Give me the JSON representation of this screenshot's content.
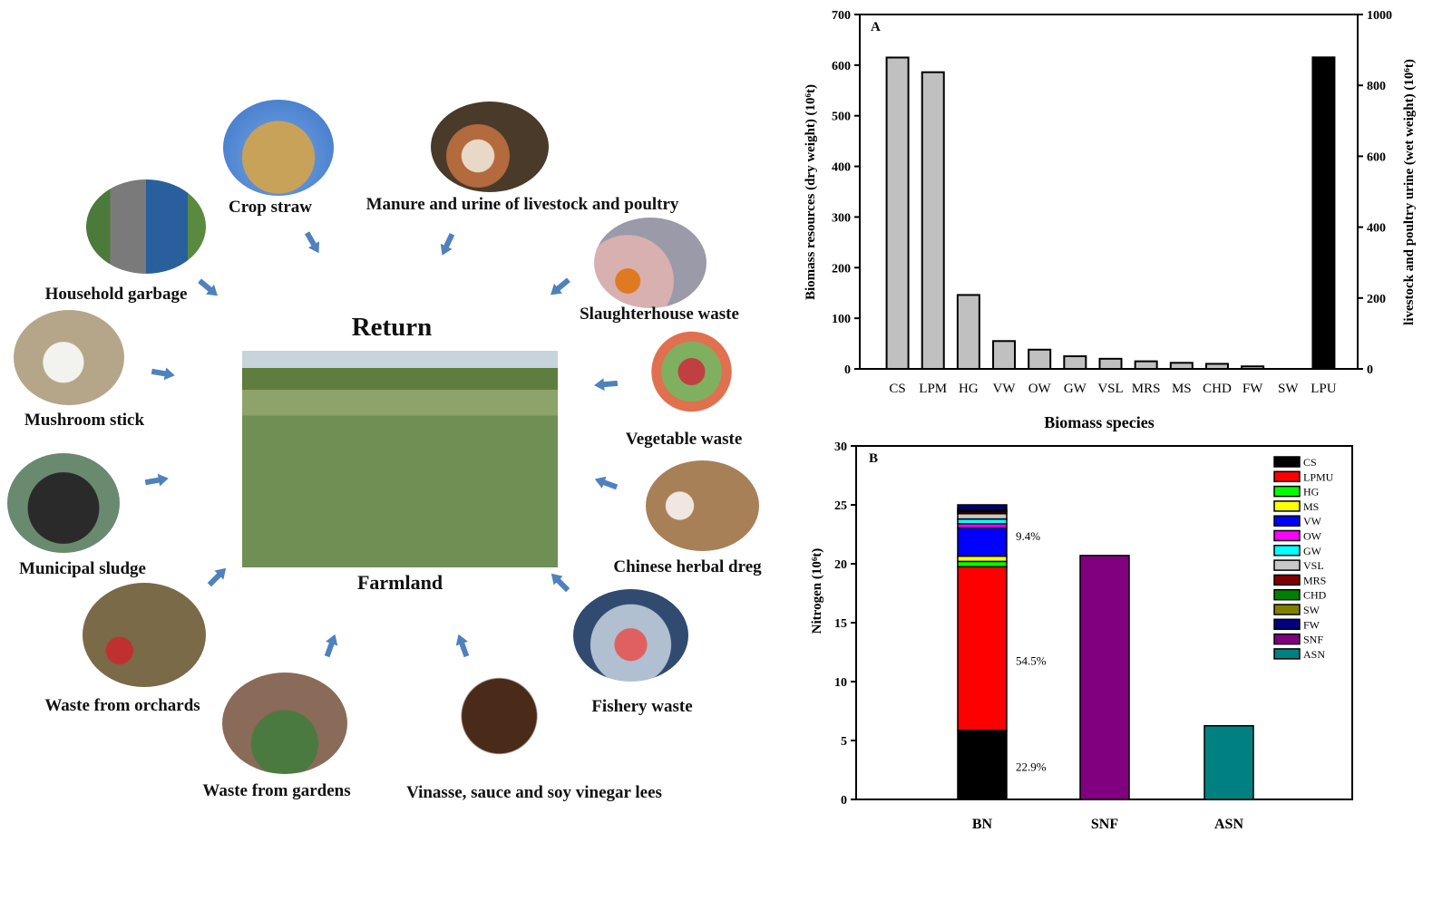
{
  "diagram": {
    "center_title": "Return",
    "center_label": "Farmland",
    "sources": [
      "Crop straw",
      "Manure and urine of livestock and poultry",
      "Household garbage",
      "Slaughterhouse waste",
      "Mushroom stick",
      "Vegetable waste",
      "Municipal sludge",
      "Chinese herbal dreg",
      "Waste from orchards",
      "Fishery waste",
      "Waste from gardens",
      "Vinasse, sauce and soy vinegar lees"
    ],
    "arrow_color": "#4f81bd"
  },
  "chart_data": [
    {
      "type": "bar",
      "panel": "A",
      "categories": [
        "CS",
        "LPM",
        "HG",
        "VW",
        "OW",
        "GW",
        "VSL",
        "MRS",
        "MS",
        "CHD",
        "FW",
        "SW",
        "LPU"
      ],
      "values": [
        615,
        586,
        146,
        55,
        38,
        25,
        20,
        15,
        12,
        10,
        5,
        0,
        null
      ],
      "secondary_axis_values": {
        "LPU": 879
      },
      "xlabel": "Biomass species",
      "ylabel": "Biomass resources (dry weight) (10⁶t)",
      "y2label": "livestock and poultry urine (wet weight) (10⁶t)",
      "ylim": [
        0,
        700
      ],
      "y2lim": [
        0,
        1000
      ],
      "yticks": [
        0,
        100,
        200,
        300,
        400,
        500,
        600,
        700
      ],
      "y2ticks": [
        0,
        200,
        400,
        600,
        800,
        1000
      ],
      "colors": {
        "primary": "#c0c0c0",
        "secondary": "#000000"
      }
    },
    {
      "type": "bar",
      "stacked": true,
      "panel": "B",
      "categories": [
        "BN",
        "SNF",
        "ASN"
      ],
      "ylabel": "Nitrogen (10⁶t)",
      "ylim": [
        0,
        30
      ],
      "yticks": [
        0,
        5,
        10,
        15,
        20,
        25,
        30
      ],
      "legend_position": "top-right",
      "series": [
        {
          "name": "CS",
          "color": "#000000",
          "values": [
            5.85,
            0,
            0
          ]
        },
        {
          "name": "LPMU",
          "color": "#ff0000",
          "values": [
            13.9,
            0,
            0
          ]
        },
        {
          "name": "HG",
          "color": "#00ff00",
          "values": [
            0.45,
            0,
            0
          ]
        },
        {
          "name": "MS",
          "color": "#ffff00",
          "values": [
            0.45,
            0,
            0
          ]
        },
        {
          "name": "VW",
          "color": "#0000ff",
          "values": [
            2.4,
            0,
            0
          ]
        },
        {
          "name": "OW",
          "color": "#ff00ff",
          "values": [
            0.35,
            0,
            0
          ]
        },
        {
          "name": "GW",
          "color": "#00ffff",
          "values": [
            0.4,
            0,
            0
          ]
        },
        {
          "name": "VSL",
          "color": "#c8c8c8",
          "values": [
            0.45,
            0,
            0
          ]
        },
        {
          "name": "MRS",
          "color": "#800000",
          "values": [
            0.15,
            0,
            0
          ]
        },
        {
          "name": "CHD",
          "color": "#008000",
          "values": [
            0.1,
            0,
            0
          ]
        },
        {
          "name": "SW",
          "color": "#808000",
          "values": [
            0.1,
            0,
            0
          ]
        },
        {
          "name": "FW",
          "color": "#000080",
          "values": [
            0.4,
            0,
            0
          ]
        },
        {
          "name": "SNF",
          "color": "#800080",
          "values": [
            0,
            20.7,
            0
          ]
        },
        {
          "name": "ASN",
          "color": "#008080",
          "values": [
            0,
            0,
            6.25
          ]
        }
      ],
      "annotations": [
        {
          "text": "22.9%",
          "y": 2.8
        },
        {
          "text": "54.5%",
          "y": 11.8
        },
        {
          "text": "9.4%",
          "y": 22.4
        }
      ]
    }
  ]
}
